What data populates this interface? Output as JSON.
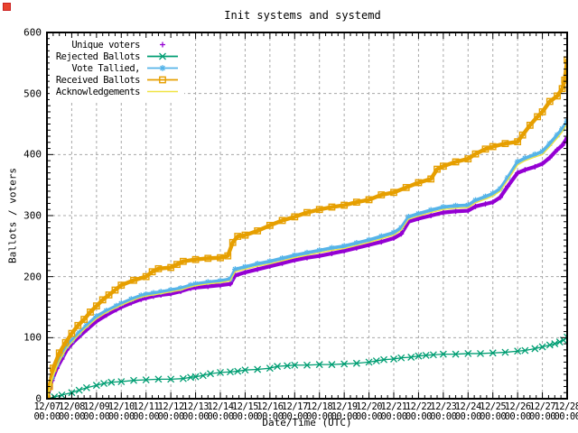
{
  "ui": {
    "recording_indicator_color": "#e8432d"
  },
  "chart_data": {
    "type": "line",
    "title": "Init systems and systemd",
    "xlabel": "Date/Time (UTC)",
    "ylabel": "Ballots / voters",
    "xlim_days": [
      0,
      21
    ],
    "ylim": [
      0,
      600
    ],
    "grid": true,
    "legend_position": "top-left",
    "y_ticks": [
      0,
      100,
      200,
      300,
      400,
      500,
      600
    ],
    "x_tick_dates": [
      "12/07",
      "12/08",
      "12/09",
      "12/10",
      "12/11",
      "12/12",
      "12/13",
      "12/14",
      "12/15",
      "12/16",
      "12/17",
      "12/18",
      "12/19",
      "12/20",
      "12/21",
      "12/22",
      "12/23",
      "12/24",
      "12/25",
      "12/26",
      "12/27",
      "12/28"
    ],
    "x_tick_time": "00:00",
    "series": [
      {
        "name": "Unique voters",
        "color": "#9400d3",
        "style": "points",
        "marker": "plus",
        "line_width": 4.2,
        "points": [
          [
            0,
            0
          ],
          [
            0.2,
            30
          ],
          [
            0.4,
            50
          ],
          [
            0.6,
            65
          ],
          [
            0.8,
            80
          ],
          [
            1,
            90
          ],
          [
            1.3,
            102
          ],
          [
            1.6,
            113
          ],
          [
            2,
            127
          ],
          [
            2.4,
            137
          ],
          [
            2.8,
            146
          ],
          [
            3,
            150
          ],
          [
            3.4,
            157
          ],
          [
            3.8,
            163
          ],
          [
            4,
            165
          ],
          [
            4.3,
            168
          ],
          [
            4.6,
            170
          ],
          [
            5,
            172
          ],
          [
            5.4,
            176
          ],
          [
            5.8,
            181
          ],
          [
            6,
            182
          ],
          [
            6.5,
            184
          ],
          [
            7,
            186
          ],
          [
            7.4,
            188
          ],
          [
            7.6,
            202
          ],
          [
            8,
            207
          ],
          [
            8.5,
            212
          ],
          [
            9,
            217
          ],
          [
            9.5,
            222
          ],
          [
            10,
            227
          ],
          [
            10.5,
            231
          ],
          [
            11,
            234
          ],
          [
            11.5,
            238
          ],
          [
            12,
            242
          ],
          [
            12.5,
            247
          ],
          [
            13,
            252
          ],
          [
            13.5,
            257
          ],
          [
            14,
            263
          ],
          [
            14.3,
            270
          ],
          [
            14.6,
            290
          ],
          [
            15,
            295
          ],
          [
            15.5,
            300
          ],
          [
            16,
            305
          ],
          [
            16.5,
            307
          ],
          [
            17,
            308
          ],
          [
            17.3,
            315
          ],
          [
            17.7,
            319
          ],
          [
            18,
            322
          ],
          [
            18.3,
            330
          ],
          [
            18.6,
            348
          ],
          [
            19,
            370
          ],
          [
            19.3,
            375
          ],
          [
            19.7,
            380
          ],
          [
            20,
            385
          ],
          [
            20.3,
            395
          ],
          [
            20.6,
            408
          ],
          [
            20.8,
            415
          ],
          [
            21,
            427
          ]
        ]
      },
      {
        "name": "Rejected Ballots",
        "color": "#009e73",
        "style": "linespoints",
        "marker": "cross",
        "line_width": 1.3,
        "points": [
          [
            0,
            0
          ],
          [
            0.3,
            3
          ],
          [
            0.6,
            6
          ],
          [
            1,
            10
          ],
          [
            1.3,
            14
          ],
          [
            1.6,
            18
          ],
          [
            2,
            22
          ],
          [
            2.3,
            25
          ],
          [
            2.6,
            27
          ],
          [
            3,
            28
          ],
          [
            3.5,
            30
          ],
          [
            4,
            31
          ],
          [
            4.5,
            32
          ],
          [
            5,
            32
          ],
          [
            5.5,
            33
          ],
          [
            5.8,
            35
          ],
          [
            6,
            36
          ],
          [
            6.3,
            38
          ],
          [
            6.6,
            41
          ],
          [
            7,
            43
          ],
          [
            7.4,
            44
          ],
          [
            7.7,
            45
          ],
          [
            8,
            47
          ],
          [
            8.5,
            48
          ],
          [
            9,
            50
          ],
          [
            9.3,
            53
          ],
          [
            9.7,
            54
          ],
          [
            10,
            55
          ],
          [
            10.5,
            55
          ],
          [
            11,
            56
          ],
          [
            11.5,
            56
          ],
          [
            12,
            57
          ],
          [
            12.5,
            58
          ],
          [
            13,
            60
          ],
          [
            13.3,
            62
          ],
          [
            13.6,
            64
          ],
          [
            14,
            65
          ],
          [
            14.3,
            67
          ],
          [
            14.7,
            68
          ],
          [
            15,
            70
          ],
          [
            15.3,
            71
          ],
          [
            15.6,
            72
          ],
          [
            16,
            73
          ],
          [
            16.5,
            73
          ],
          [
            17,
            74
          ],
          [
            17.5,
            74
          ],
          [
            18,
            75
          ],
          [
            18.5,
            76
          ],
          [
            19,
            78
          ],
          [
            19.3,
            79
          ],
          [
            19.7,
            82
          ],
          [
            20,
            85
          ],
          [
            20.3,
            88
          ],
          [
            20.5,
            90
          ],
          [
            20.7,
            93
          ],
          [
            20.85,
            96
          ],
          [
            21,
            101
          ]
        ]
      },
      {
        "name": "Vote Tallied,",
        "color": "#56b4e9",
        "style": "linespoints",
        "marker": "asterisk",
        "line_width": 3.8,
        "points": [
          [
            0,
            0
          ],
          [
            0.2,
            35
          ],
          [
            0.4,
            56
          ],
          [
            0.6,
            72
          ],
          [
            0.8,
            86
          ],
          [
            1,
            95
          ],
          [
            1.3,
            108
          ],
          [
            1.6,
            120
          ],
          [
            2,
            135
          ],
          [
            2.4,
            144
          ],
          [
            2.8,
            152
          ],
          [
            3,
            156
          ],
          [
            3.4,
            163
          ],
          [
            3.8,
            169
          ],
          [
            4,
            171
          ],
          [
            4.3,
            173
          ],
          [
            4.6,
            175
          ],
          [
            5,
            178
          ],
          [
            5.4,
            181
          ],
          [
            5.8,
            186
          ],
          [
            6,
            188
          ],
          [
            6.5,
            191
          ],
          [
            7,
            193
          ],
          [
            7.4,
            196
          ],
          [
            7.6,
            212
          ],
          [
            8,
            216
          ],
          [
            8.5,
            221
          ],
          [
            9,
            225
          ],
          [
            9.5,
            230
          ],
          [
            10,
            235
          ],
          [
            10.5,
            239
          ],
          [
            11,
            243
          ],
          [
            11.5,
            247
          ],
          [
            12,
            250
          ],
          [
            12.5,
            255
          ],
          [
            13,
            260
          ],
          [
            13.5,
            266
          ],
          [
            14,
            272
          ],
          [
            14.3,
            280
          ],
          [
            14.6,
            298
          ],
          [
            15,
            303
          ],
          [
            15.5,
            309
          ],
          [
            16,
            314
          ],
          [
            16.5,
            316
          ],
          [
            17,
            317
          ],
          [
            17.3,
            325
          ],
          [
            17.7,
            331
          ],
          [
            18,
            336
          ],
          [
            18.3,
            344
          ],
          [
            18.6,
            362
          ],
          [
            19,
            388
          ],
          [
            19.3,
            394
          ],
          [
            19.7,
            400
          ],
          [
            20,
            405
          ],
          [
            20.3,
            418
          ],
          [
            20.6,
            432
          ],
          [
            20.8,
            442
          ],
          [
            21,
            455
          ]
        ]
      },
      {
        "name": "Received Ballots",
        "color": "#e69f00",
        "style": "linespoints",
        "marker": "square",
        "line_width": 4.4,
        "points": [
          [
            0,
            0
          ],
          [
            0.1,
            20
          ],
          [
            0.25,
            50
          ],
          [
            0.5,
            75
          ],
          [
            0.75,
            92
          ],
          [
            1,
            107
          ],
          [
            1.25,
            120
          ],
          [
            1.5,
            130
          ],
          [
            1.75,
            142
          ],
          [
            2,
            152
          ],
          [
            2.25,
            162
          ],
          [
            2.5,
            170
          ],
          [
            2.75,
            178
          ],
          [
            3,
            186
          ],
          [
            3.5,
            194
          ],
          [
            4,
            200
          ],
          [
            4.25,
            208
          ],
          [
            4.5,
            213
          ],
          [
            5,
            215
          ],
          [
            5.25,
            220
          ],
          [
            5.5,
            225
          ],
          [
            6,
            228
          ],
          [
            6.5,
            230
          ],
          [
            7,
            231
          ],
          [
            7.3,
            234
          ],
          [
            7.5,
            256
          ],
          [
            7.7,
            266
          ],
          [
            8,
            268
          ],
          [
            8.5,
            275
          ],
          [
            9,
            284
          ],
          [
            9.5,
            292
          ],
          [
            10,
            298
          ],
          [
            10.5,
            305
          ],
          [
            11,
            310
          ],
          [
            11.5,
            314
          ],
          [
            12,
            317
          ],
          [
            12.5,
            322
          ],
          [
            13,
            326
          ],
          [
            13.5,
            334
          ],
          [
            14,
            338
          ],
          [
            14.5,
            346
          ],
          [
            15,
            354
          ],
          [
            15.5,
            360
          ],
          [
            15.75,
            376
          ],
          [
            16,
            381
          ],
          [
            16.5,
            388
          ],
          [
            17,
            393
          ],
          [
            17.3,
            401
          ],
          [
            17.7,
            409
          ],
          [
            18,
            413
          ],
          [
            18.5,
            418
          ],
          [
            19,
            421
          ],
          [
            19.2,
            432
          ],
          [
            19.5,
            448
          ],
          [
            19.8,
            462
          ],
          [
            20,
            470
          ],
          [
            20.3,
            487
          ],
          [
            20.6,
            496
          ],
          [
            20.8,
            508
          ],
          [
            20.9,
            522
          ],
          [
            21,
            555
          ]
        ]
      },
      {
        "name": "Acknowledgements",
        "color": "#f0e442",
        "style": "lines",
        "marker": "none",
        "line_width": 1.3,
        "points": [
          [
            0,
            0
          ],
          [
            0.2,
            32
          ],
          [
            0.4,
            53
          ],
          [
            0.6,
            69
          ],
          [
            0.8,
            83
          ],
          [
            1,
            92
          ],
          [
            1.3,
            105
          ],
          [
            1.6,
            117
          ],
          [
            2,
            131
          ],
          [
            2.4,
            141
          ],
          [
            2.8,
            149
          ],
          [
            3,
            153
          ],
          [
            3.4,
            160
          ],
          [
            3.8,
            166
          ],
          [
            4,
            168
          ],
          [
            4.3,
            170
          ],
          [
            4.6,
            172
          ],
          [
            5,
            175
          ],
          [
            5.4,
            178
          ],
          [
            5.8,
            183
          ],
          [
            6,
            185
          ],
          [
            6.5,
            188
          ],
          [
            7,
            190
          ],
          [
            7.4,
            193
          ],
          [
            7.6,
            208
          ],
          [
            8,
            212
          ],
          [
            8.5,
            217
          ],
          [
            9,
            221
          ],
          [
            9.5,
            226
          ],
          [
            10,
            231
          ],
          [
            10.5,
            235
          ],
          [
            11,
            239
          ],
          [
            11.5,
            243
          ],
          [
            12,
            246
          ],
          [
            12.5,
            251
          ],
          [
            13,
            256
          ],
          [
            13.5,
            262
          ],
          [
            14,
            268
          ],
          [
            14.3,
            276
          ],
          [
            14.6,
            294
          ],
          [
            15,
            299
          ],
          [
            15.5,
            305
          ],
          [
            16,
            310
          ],
          [
            16.5,
            312
          ],
          [
            17,
            313
          ],
          [
            17.3,
            321
          ],
          [
            17.7,
            327
          ],
          [
            18,
            332
          ],
          [
            18.3,
            340
          ],
          [
            18.6,
            358
          ],
          [
            19,
            383
          ],
          [
            19.3,
            390
          ],
          [
            19.7,
            396
          ],
          [
            20,
            400
          ],
          [
            20.3,
            413
          ],
          [
            20.6,
            427
          ],
          [
            20.8,
            437
          ],
          [
            21,
            450
          ]
        ]
      }
    ]
  }
}
